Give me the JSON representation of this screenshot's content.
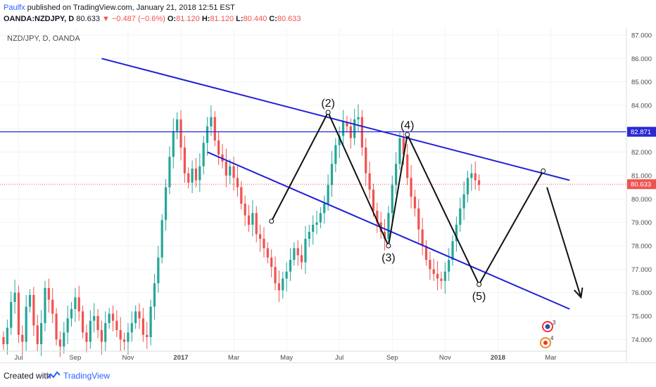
{
  "header": {
    "author": "Paulfx",
    "published": " published on TradingView.com, January 21, 2018 12:51 EST",
    "symbol": "OANDA:NZDJPY, D",
    "last": "80.633",
    "change": "−0.487 (−0.6%)",
    "o_label": "O:",
    "o_val": "81.120",
    "h_label": "H:",
    "h_val": "81.120",
    "l_label": "L:",
    "l_val": "80.440",
    "c_label": "C:",
    "c_val": "80.633"
  },
  "footer": {
    "created_with": "Created with",
    "brand": "TradingView"
  },
  "chart_data": {
    "type": "candlestick",
    "legend": "NZD/JPY, D, OANDA",
    "y_ticks": [
      "87.000",
      "86.000",
      "85.000",
      "84.000",
      "83.000",
      "82.000",
      "81.000",
      "80.000",
      "79.000",
      "78.000",
      "77.000",
      "76.000",
      "75.000",
      "74.000"
    ],
    "ylim": [
      73.5,
      87.3
    ],
    "x_ticks": [
      "Jul",
      "Sep",
      "Nov",
      "2017",
      "Mar",
      "May",
      "Jul",
      "Sep",
      "Nov",
      "2018",
      "Mar"
    ],
    "bold_x_ticks": [
      "2017",
      "2018"
    ],
    "horizontal_line": {
      "price": 82.871,
      "label": "82.871",
      "color": "#2929d6"
    },
    "last_price": {
      "price": 80.633,
      "label": "80.633",
      "color": "#ef5350"
    },
    "wave_labels": [
      "(2)",
      "(3)",
      "(4)",
      "(5)"
    ],
    "wave_points": [
      {
        "label": "",
        "t": 71,
        "p": 79.05
      },
      {
        "label": "(2)",
        "t": 86,
        "p": 83.7
      },
      {
        "label": "(3)",
        "t": 102,
        "p": 78.0
      },
      {
        "label": "(4)",
        "t": 107,
        "p": 82.75
      },
      {
        "label": "(5)",
        "t": 126,
        "p": 76.35
      },
      {
        "label": "",
        "t": 143,
        "p": 81.2
      }
    ],
    "channel_upper": [
      {
        "t": 26,
        "p": 86.0
      },
      {
        "t": 150,
        "p": 80.8
      }
    ],
    "channel_lower": [
      {
        "t": 0,
        "p": 82.0
      },
      {
        "t": 150,
        "p": 75.3
      }
    ],
    "projection_arrow": [
      {
        "t": 144,
        "p": 80.5
      },
      {
        "t": 153,
        "p": 75.8
      }
    ],
    "series_note": "weekly-approximated closes May 2016 – Jan 2018",
    "closes": [
      73.8,
      74.5,
      75.6,
      76.0,
      74.2,
      73.9,
      75.4,
      75.9,
      74.6,
      73.8,
      74.7,
      76.2,
      75.7,
      75.1,
      74.0,
      73.7,
      74.3,
      74.9,
      75.3,
      75.8,
      75.2,
      74.3,
      73.9,
      74.8,
      75.0,
      74.4,
      73.9,
      74.7,
      75.1,
      74.8,
      74.4,
      74.0,
      73.9,
      74.3,
      74.7,
      75.2,
      74.9,
      74.2,
      74.1,
      75.4,
      76.4,
      77.5,
      79.1,
      80.5,
      81.8,
      82.9,
      83.4,
      82.2,
      81.1,
      80.7,
      81.3,
      80.8,
      81.4,
      82.4,
      83.1,
      83.5,
      82.5,
      81.9,
      81.6,
      81.0,
      81.4,
      80.9,
      80.5,
      79.8,
      79.3,
      78.9,
      79.4,
      78.5,
      78.3,
      77.9,
      77.5,
      77.1,
      76.4,
      76.1,
      76.6,
      76.9,
      77.4,
      77.9,
      77.6,
      77.3,
      78.3,
      78.6,
      78.9,
      79.0,
      79.4,
      79.8,
      80.6,
      81.5,
      82.3,
      82.7,
      83.3,
      83.1,
      82.6,
      83.4,
      83.5,
      82.2,
      81.1,
      80.4,
      79.5,
      79.0,
      78.6,
      78.3,
      79.4,
      80.6,
      81.5,
      82.6,
      81.9,
      80.9,
      80.1,
      79.6,
      78.7,
      78.0,
      77.4,
      77.0,
      76.8,
      76.6,
      76.5,
      76.9,
      77.4,
      78.2,
      78.9,
      79.6,
      80.2,
      80.9,
      81.1,
      80.8,
      80.6
    ]
  }
}
